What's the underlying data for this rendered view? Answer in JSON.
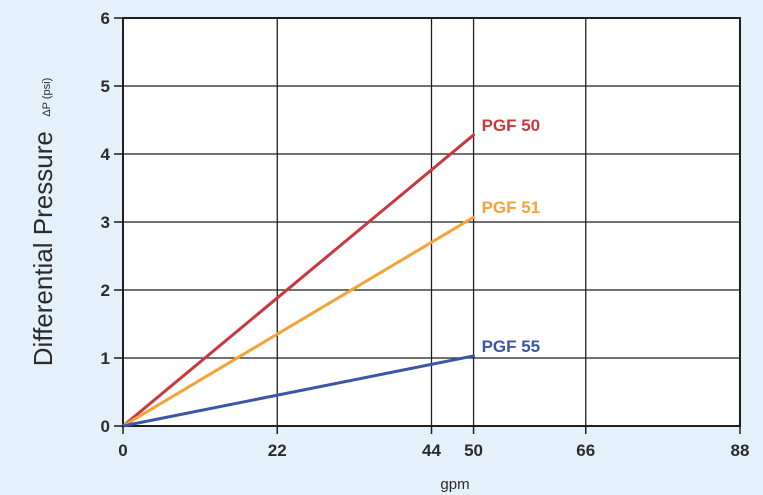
{
  "chart_data": {
    "type": "line",
    "title": "",
    "xlabel": "gpm",
    "ylabel": "Differential Pressure",
    "ylabel_unit": "ΔP (psi)",
    "xlim": [
      0,
      88
    ],
    "ylim": [
      0,
      6
    ],
    "x_ticks": [
      0,
      22,
      44,
      50,
      66,
      88
    ],
    "y_ticks": [
      0,
      1,
      2,
      3,
      4,
      5,
      6
    ],
    "grid": true,
    "series": [
      {
        "name": "PGF 50",
        "color": "#c8393f",
        "x": [
          0,
          50
        ],
        "y": [
          0,
          4.28
        ]
      },
      {
        "name": "PGF 51",
        "color": "#f5a236",
        "x": [
          0,
          50
        ],
        "y": [
          0,
          3.07
        ]
      },
      {
        "name": "PGF 55",
        "color": "#3a57a6",
        "x": [
          0,
          50
        ],
        "y": [
          0,
          1.03
        ]
      }
    ]
  }
}
